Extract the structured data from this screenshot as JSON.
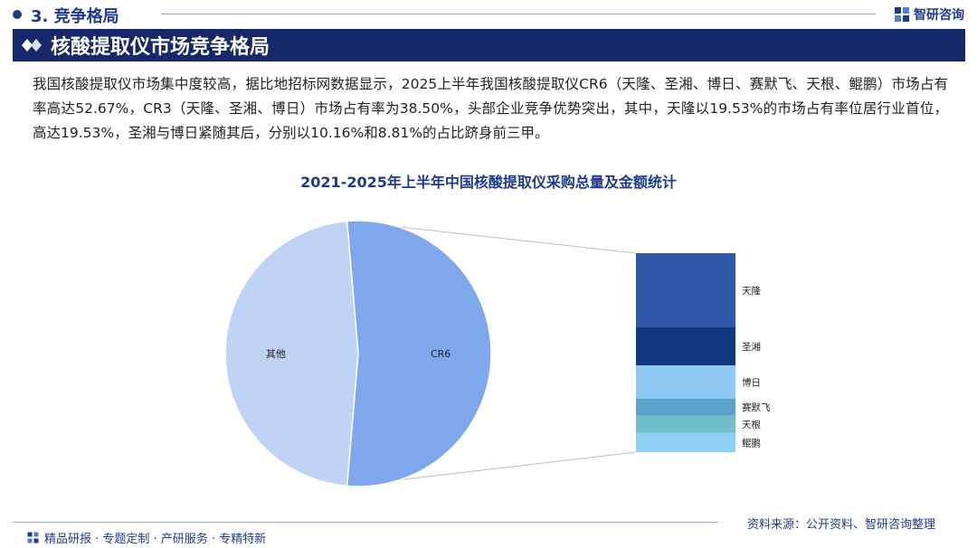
{
  "section": {
    "label": "3. 竞争格局"
  },
  "logo": {
    "text": "智研咨询"
  },
  "banner": {
    "title": "核酸提取仪市场竞争格局"
  },
  "description": "我国核酸提取仪市场集中度较高，据比地招标网数据显示，2025上半年我国核酸提取仪CR6（天隆、圣湘、博日、赛默飞、天根、鲲鹏）市场占有率高达52.67%，CR3（天隆、圣湘、博日）市场占有率为38.50%，头部企业竞争优势突出，其中，天隆以19.53%的市场占有率位居行业首位，高达19.53%，圣湘与博日紧随其后，分别以10.16%和8.81%的占比跻身前三甲。",
  "chart_data": {
    "type": "bar-of-pie",
    "title": "2021-2025年上半年中国核酸提取仪采购总量及金额统计",
    "pie": {
      "slices": [
        {
          "label": "其他",
          "value": 47.33,
          "color": "#bfd3f7"
        },
        {
          "label": "CR6",
          "value": 52.67,
          "color": "#7fa8ec"
        }
      ]
    },
    "bar": {
      "exploded_slice": "CR6",
      "segments": [
        {
          "label": "天隆",
          "value": 19.53,
          "color": "#2f58a8"
        },
        {
          "label": "圣湘",
          "value": 10.16,
          "color": "#103780"
        },
        {
          "label": "博日",
          "value": 8.81,
          "color": "#8ec9f4"
        },
        {
          "label": "赛默飞",
          "value": 4.5,
          "color": "#58a4cc"
        },
        {
          "label": "天根",
          "value": 4.6,
          "color": "#6ec1c9"
        },
        {
          "label": "鲲鹏",
          "value": 5.07,
          "color": "#8ed0f8"
        }
      ]
    },
    "connector_color": "#bdbdbd"
  },
  "source": "资料来源：公开资料、智研咨询整理",
  "footer": {
    "text": "精品研报 · 专题定制 · 产研服务 · 专精特新"
  }
}
